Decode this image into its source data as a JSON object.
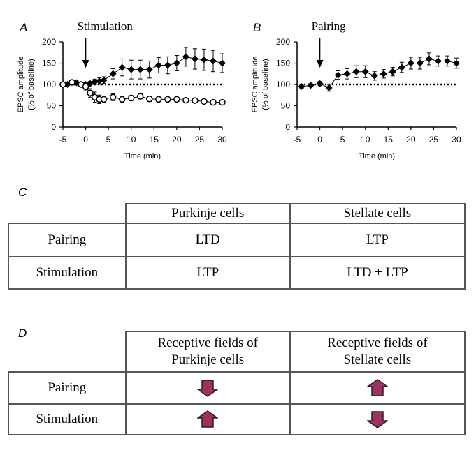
{
  "panels": {
    "a": "A",
    "b": "B",
    "c": "C",
    "d": "D"
  },
  "chart_data": [
    {
      "type": "line",
      "panel": "A",
      "annotation": "Stimulation",
      "annotation_x": 0,
      "xlabel": "Time (min)",
      "ylabel_line1": "EPSC amplitude",
      "ylabel_line2": "(% of baseline)",
      "xlim": [
        -5,
        30
      ],
      "ylim": [
        0,
        200
      ],
      "xticks": [
        -5,
        0,
        5,
        10,
        15,
        20,
        25,
        30
      ],
      "yticks": [
        0,
        50,
        100,
        150,
        200
      ],
      "baseline": 100,
      "series": [
        {
          "marker": "filled-diamond",
          "x": [
            -4,
            -2,
            -1,
            0,
            1,
            2,
            3,
            4,
            6,
            8,
            10,
            12,
            14,
            16,
            18,
            20,
            22,
            24,
            26,
            28,
            30
          ],
          "y": [
            100,
            104,
            100,
            100,
            102,
            106,
            108,
            110,
            125,
            140,
            135,
            135,
            135,
            145,
            145,
            150,
            165,
            160,
            158,
            155,
            150
          ],
          "err": [
            3,
            4,
            4,
            4,
            5,
            6,
            8,
            8,
            12,
            20,
            22,
            22,
            20,
            18,
            20,
            18,
            22,
            24,
            25,
            25,
            22
          ]
        },
        {
          "marker": "open-circle",
          "x": [
            -5,
            -3,
            -1,
            0,
            1,
            2,
            3,
            4,
            6,
            8,
            10,
            12,
            14,
            16,
            18,
            20,
            22,
            24,
            26,
            28,
            30
          ],
          "y": [
            100,
            105,
            100,
            95,
            80,
            70,
            65,
            65,
            70,
            65,
            68,
            72,
            66,
            65,
            65,
            65,
            63,
            62,
            60,
            58,
            58
          ],
          "err": [
            3,
            4,
            4,
            8,
            10,
            12,
            10,
            8,
            8,
            8,
            6,
            6,
            6,
            6,
            5,
            5,
            5,
            5,
            4,
            4,
            4
          ]
        }
      ]
    },
    {
      "type": "line",
      "panel": "B",
      "annotation": "Pairing",
      "annotation_x": 0,
      "xlabel": "Time (min)",
      "ylabel_line1": "EPSC amplitude",
      "ylabel_line2": "(% of baseline)",
      "xlim": [
        -5,
        30
      ],
      "ylim": [
        0,
        200
      ],
      "xticks": [
        -5,
        0,
        5,
        10,
        15,
        20,
        25,
        30
      ],
      "yticks": [
        0,
        50,
        100,
        150,
        200
      ],
      "baseline": 100,
      "series": [
        {
          "marker": "filled-diamond",
          "x": [
            -4,
            -2,
            0,
            2,
            4,
            6,
            8,
            10,
            12,
            14,
            16,
            18,
            20,
            22,
            24,
            26,
            28,
            30
          ],
          "y": [
            95,
            98,
            102,
            92,
            122,
            125,
            130,
            130,
            120,
            125,
            130,
            140,
            150,
            150,
            160,
            155,
            155,
            150
          ],
          "err": [
            4,
            4,
            5,
            8,
            10,
            12,
            14,
            14,
            10,
            10,
            10,
            12,
            14,
            14,
            14,
            12,
            12,
            12
          ]
        }
      ]
    }
  ],
  "table_c": {
    "headers": [
      "Purkinje cells",
      "Stellate cells"
    ],
    "rows": [
      {
        "label": "Pairing",
        "purkinje": "LTD",
        "stellate": "LTP"
      },
      {
        "label": "Stimulation",
        "purkinje": "LTP",
        "stellate": "LTD + LTP"
      }
    ]
  },
  "table_d": {
    "header_purkinje_line1": "Receptive fields of",
    "header_purkinje_line2": "Purkinje cells",
    "header_stellate_line1": "Receptive fields of",
    "header_stellate_line2": "Stellate cells",
    "rows": [
      {
        "label": "Pairing",
        "purkinje": "down-arrow-icon",
        "stellate": "up-arrow-icon"
      },
      {
        "label": "Stimulation",
        "purkinje": "up-arrow-icon",
        "stellate": "down-arrow-icon"
      }
    ],
    "arrow_color": "#a0305f"
  }
}
